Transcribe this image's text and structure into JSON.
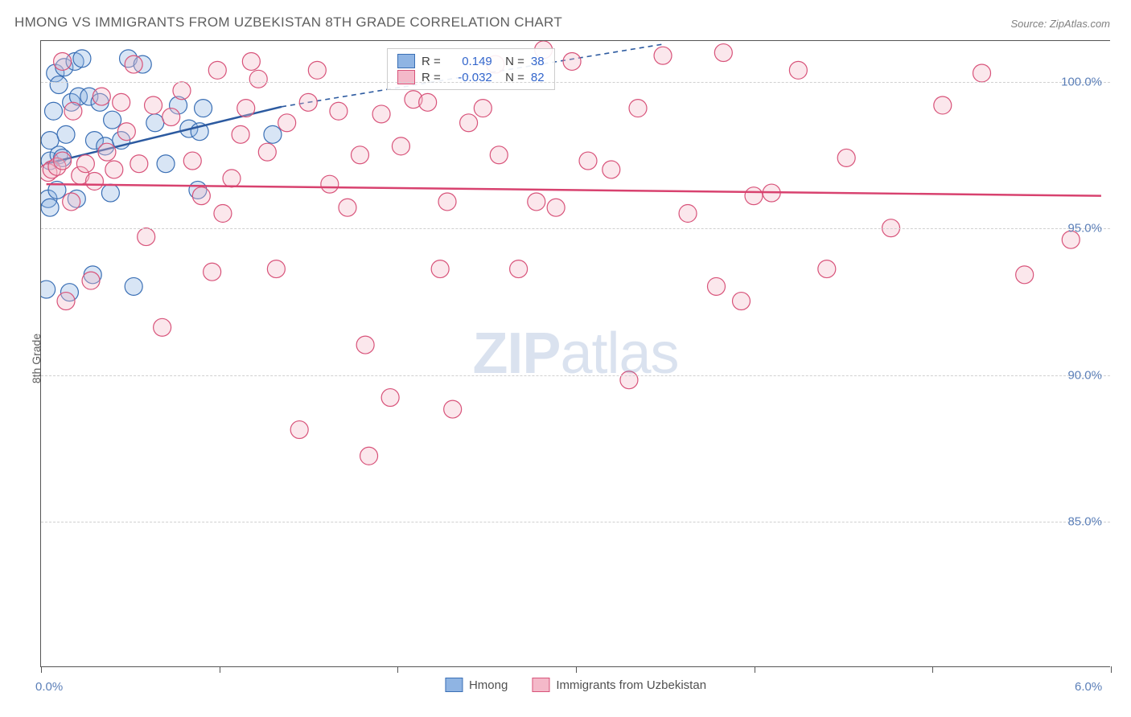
{
  "title": "HMONG VS IMMIGRANTS FROM UZBEKISTAN 8TH GRADE CORRELATION CHART",
  "source": "Source: ZipAtlas.com",
  "watermark_a": "ZIP",
  "watermark_b": "atlas",
  "chart": {
    "type": "scatter",
    "xlabel": "",
    "ylabel": "8th Grade",
    "xlim": [
      0.0,
      6.0
    ],
    "ylim": [
      80.0,
      101.4
    ],
    "x_ticks": [
      0.0,
      1.0,
      2.0,
      3.0,
      4.0,
      5.0,
      6.0
    ],
    "x_tick_labels": {
      "0": "0.0%",
      "6": "6.0%"
    },
    "y_gridlines": [
      85.0,
      90.0,
      95.0,
      100.0
    ],
    "y_tick_labels": [
      "85.0%",
      "90.0%",
      "95.0%",
      "100.0%"
    ],
    "background_color": "#ffffff",
    "grid_color": "#d0d0d0",
    "marker_radius": 11,
    "marker_opacity": 0.35,
    "series": [
      {
        "name": "Hmong",
        "fill_color": "#8fb4e3",
        "stroke_color": "#3a6fb5",
        "line_color": "#2c5aa0",
        "R": "0.149",
        "N": "38",
        "trend": {
          "x1": 0.03,
          "y1": 97.2,
          "x2": 1.35,
          "y2": 99.15,
          "dash_x": 3.5,
          "dash_y": 101.3
        },
        "points": [
          [
            0.04,
            96.0
          ],
          [
            0.05,
            97.3
          ],
          [
            0.05,
            98.0
          ],
          [
            0.07,
            99.0
          ],
          [
            0.08,
            100.3
          ],
          [
            0.1,
            99.9
          ],
          [
            0.1,
            97.5
          ],
          [
            0.12,
            97.4
          ],
          [
            0.13,
            100.5
          ],
          [
            0.14,
            98.2
          ],
          [
            0.16,
            92.8
          ],
          [
            0.17,
            99.3
          ],
          [
            0.19,
            100.7
          ],
          [
            0.21,
            99.5
          ],
          [
            0.23,
            100.8
          ],
          [
            0.27,
            99.5
          ],
          [
            0.29,
            93.4
          ],
          [
            0.3,
            98.0
          ],
          [
            0.33,
            99.3
          ],
          [
            0.36,
            97.8
          ],
          [
            0.39,
            96.2
          ],
          [
            0.4,
            98.7
          ],
          [
            0.45,
            98.0
          ],
          [
            0.49,
            100.8
          ],
          [
            0.52,
            93.0
          ],
          [
            0.57,
            100.6
          ],
          [
            0.64,
            98.6
          ],
          [
            0.7,
            97.2
          ],
          [
            0.77,
            99.2
          ],
          [
            0.83,
            98.4
          ],
          [
            0.88,
            96.3
          ],
          [
            0.89,
            98.3
          ],
          [
            0.91,
            99.1
          ],
          [
            0.03,
            92.9
          ],
          [
            0.05,
            95.7
          ],
          [
            0.09,
            96.3
          ],
          [
            0.2,
            96.0
          ],
          [
            1.3,
            98.2
          ]
        ]
      },
      {
        "name": "Immigrants from Uzbekistan",
        "fill_color": "#f4b9c9",
        "stroke_color": "#d8537a",
        "line_color": "#d8426f",
        "R": "-0.032",
        "N": "82",
        "trend": {
          "x1": 0.03,
          "y1": 96.5,
          "x2": 5.95,
          "y2": 96.1
        },
        "points": [
          [
            0.04,
            96.9
          ],
          [
            0.06,
            97.0
          ],
          [
            0.09,
            97.1
          ],
          [
            0.12,
            97.3
          ],
          [
            0.12,
            100.7
          ],
          [
            0.14,
            92.5
          ],
          [
            0.17,
            95.9
          ],
          [
            0.18,
            99.0
          ],
          [
            0.22,
            96.8
          ],
          [
            0.25,
            97.2
          ],
          [
            0.28,
            93.2
          ],
          [
            0.3,
            96.6
          ],
          [
            0.34,
            99.5
          ],
          [
            0.37,
            97.6
          ],
          [
            0.41,
            97.0
          ],
          [
            0.45,
            99.3
          ],
          [
            0.48,
            98.3
          ],
          [
            0.52,
            100.6
          ],
          [
            0.55,
            97.2
          ],
          [
            0.59,
            94.7
          ],
          [
            0.63,
            99.2
          ],
          [
            0.68,
            91.6
          ],
          [
            0.73,
            98.8
          ],
          [
            0.79,
            99.7
          ],
          [
            0.85,
            97.3
          ],
          [
            0.9,
            96.1
          ],
          [
            0.96,
            93.5
          ],
          [
            0.99,
            100.4
          ],
          [
            1.02,
            95.5
          ],
          [
            1.07,
            96.7
          ],
          [
            1.12,
            98.2
          ],
          [
            1.15,
            99.1
          ],
          [
            1.18,
            100.7
          ],
          [
            1.22,
            100.1
          ],
          [
            1.27,
            97.6
          ],
          [
            1.32,
            93.6
          ],
          [
            1.38,
            98.6
          ],
          [
            1.45,
            88.1
          ],
          [
            1.5,
            99.3
          ],
          [
            1.55,
            100.4
          ],
          [
            1.62,
            96.5
          ],
          [
            1.67,
            99.0
          ],
          [
            1.72,
            95.7
          ],
          [
            1.79,
            97.5
          ],
          [
            1.82,
            91.0
          ],
          [
            1.84,
            87.2
          ],
          [
            1.91,
            98.9
          ],
          [
            1.96,
            89.2
          ],
          [
            2.02,
            97.8
          ],
          [
            2.09,
            99.4
          ],
          [
            2.17,
            99.3
          ],
          [
            2.24,
            93.6
          ],
          [
            2.28,
            95.9
          ],
          [
            2.31,
            88.8
          ],
          [
            2.4,
            98.6
          ],
          [
            2.48,
            99.1
          ],
          [
            2.57,
            97.5
          ],
          [
            2.68,
            93.6
          ],
          [
            2.78,
            95.9
          ],
          [
            2.82,
            101.1
          ],
          [
            2.89,
            95.7
          ],
          [
            2.98,
            100.7
          ],
          [
            3.07,
            97.3
          ],
          [
            3.2,
            97.0
          ],
          [
            3.3,
            89.8
          ],
          [
            3.35,
            99.1
          ],
          [
            3.49,
            100.9
          ],
          [
            3.63,
            95.5
          ],
          [
            3.79,
            93.0
          ],
          [
            3.83,
            101.0
          ],
          [
            3.93,
            92.5
          ],
          [
            4.1,
            96.2
          ],
          [
            4.25,
            100.4
          ],
          [
            4.41,
            93.6
          ],
          [
            4.52,
            97.4
          ],
          [
            4.77,
            95.0
          ],
          [
            5.06,
            99.2
          ],
          [
            5.28,
            100.3
          ],
          [
            5.52,
            93.4
          ],
          [
            4.0,
            96.1
          ],
          [
            5.78,
            94.6
          ],
          [
            2.55,
            100.6
          ]
        ]
      }
    ]
  },
  "legend_bottom": [
    "Hmong",
    "Immigrants from Uzbekistan"
  ]
}
